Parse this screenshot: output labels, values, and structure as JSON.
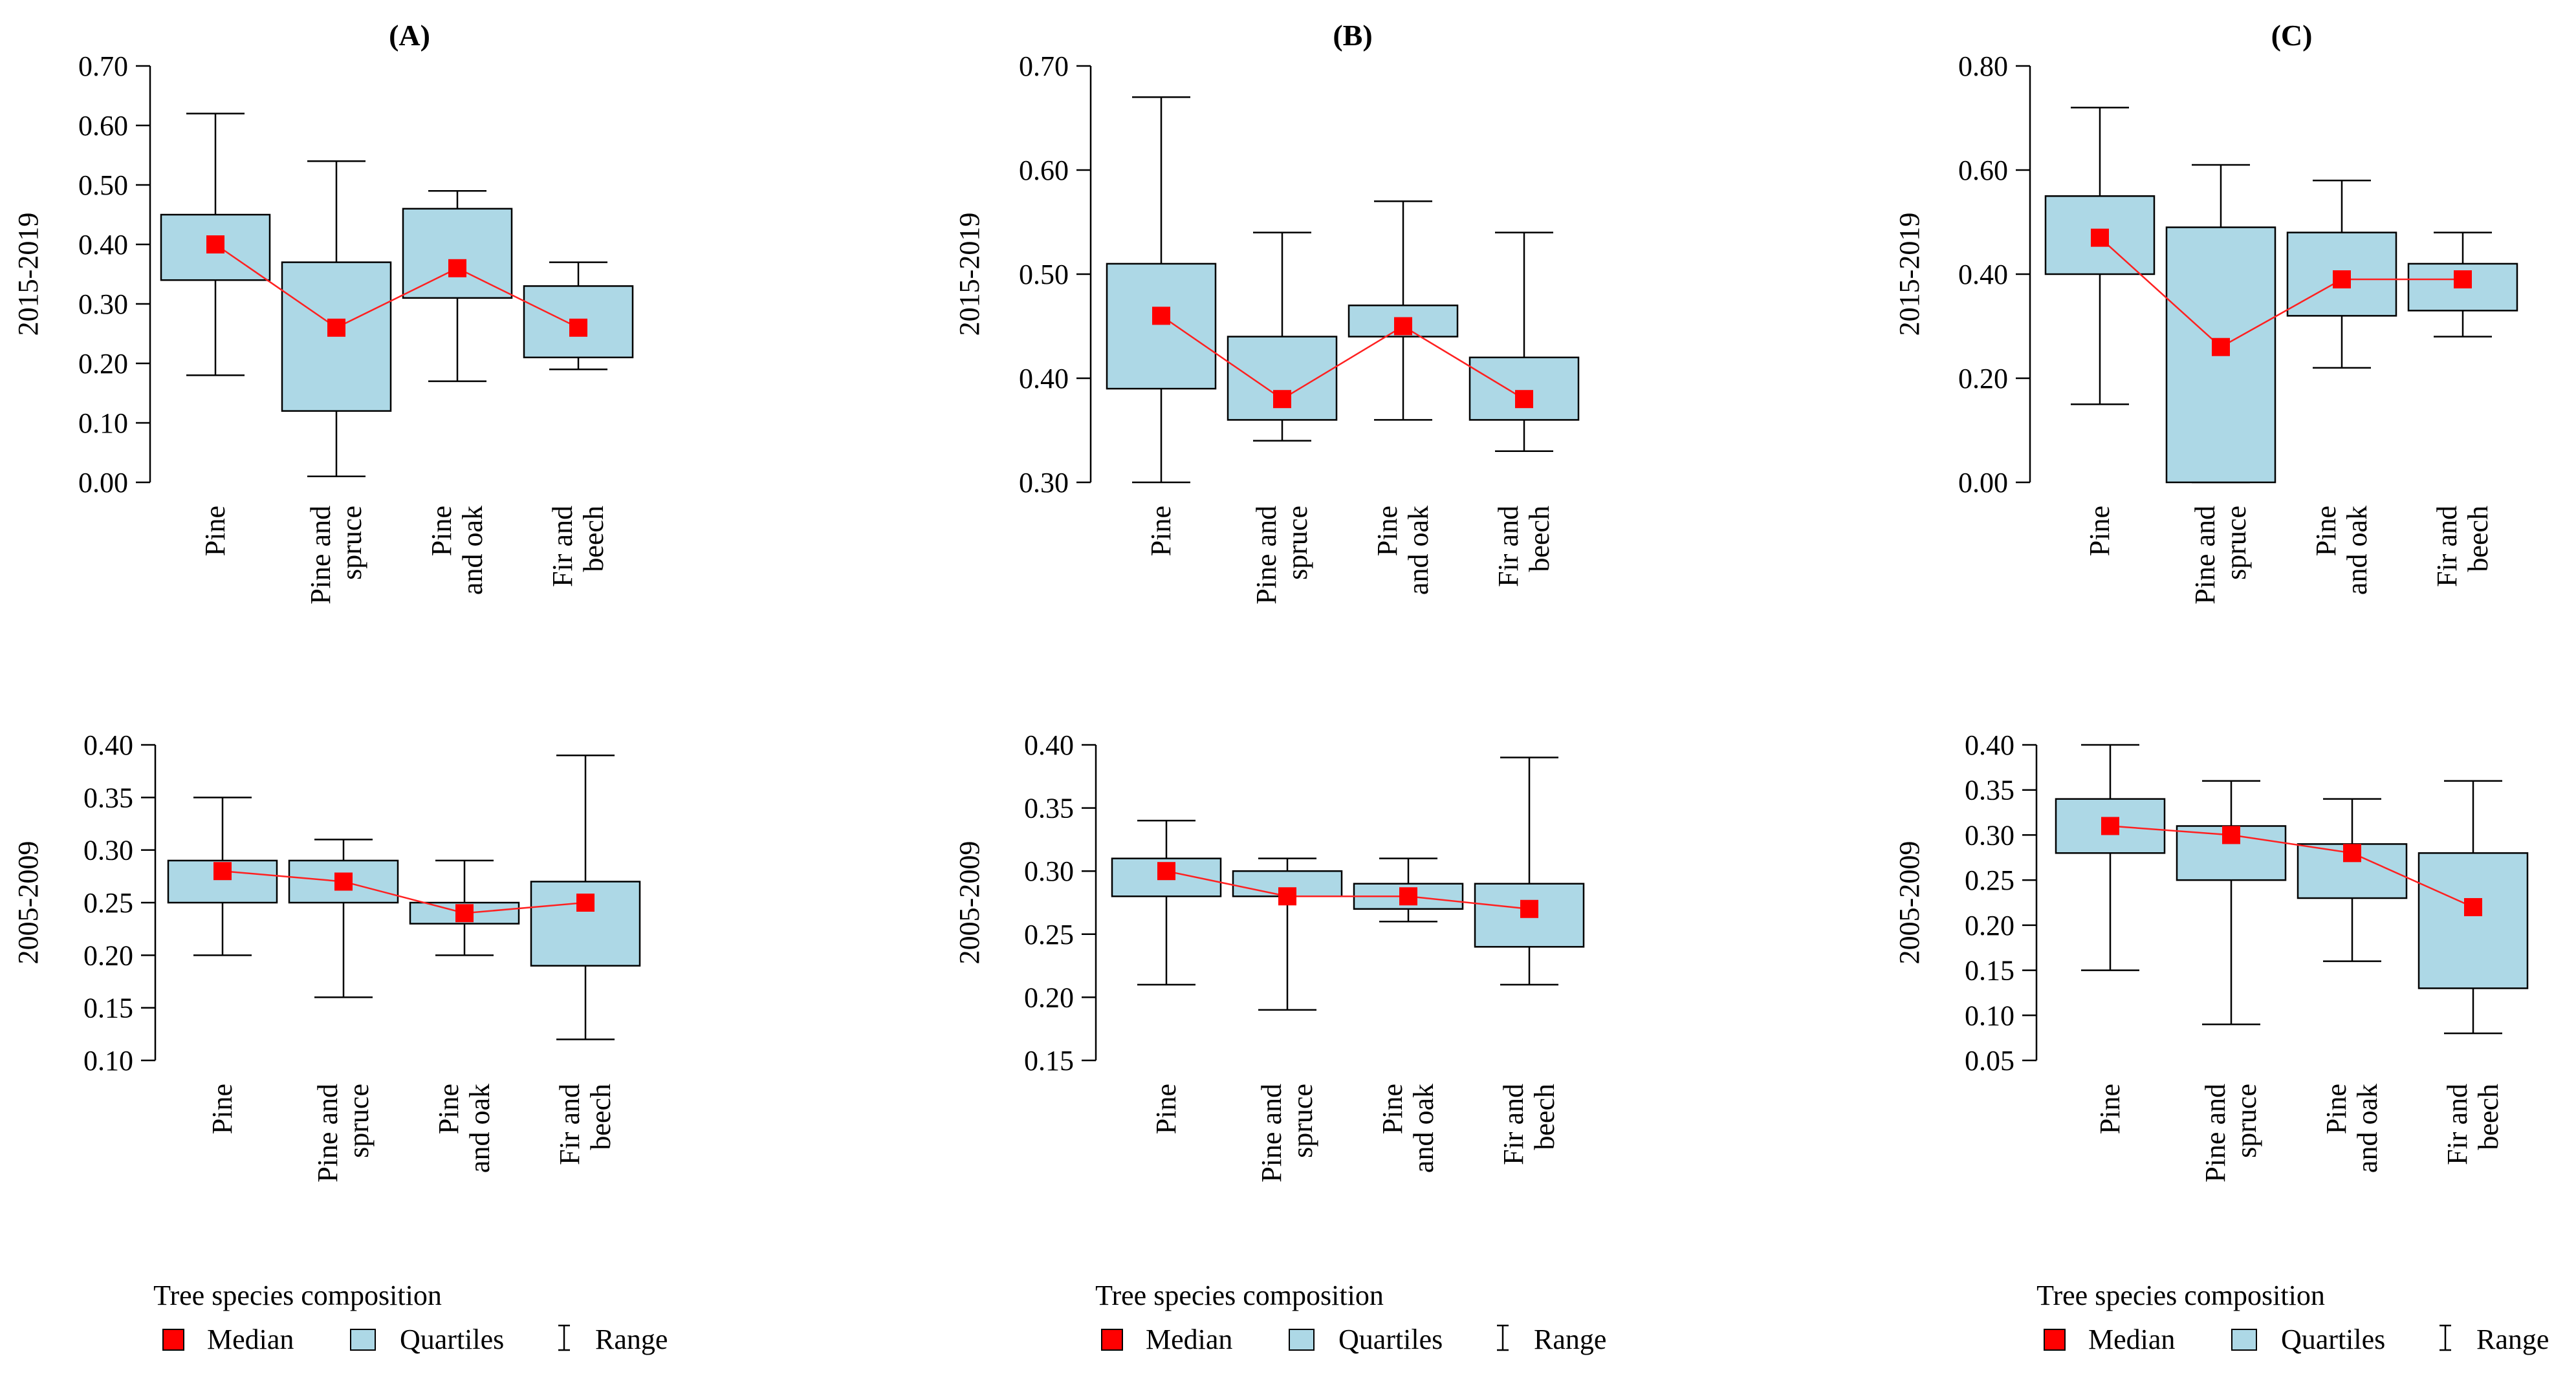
{
  "chart_data": [
    {
      "panel": "(A)",
      "row": "top",
      "type": "box",
      "ylabel": "2015-2019",
      "ylim": [
        0.0,
        0.7
      ],
      "yticks": [
        "0.00",
        "0.10",
        "0.20",
        "0.30",
        "0.40",
        "0.50",
        "0.60",
        "0.70"
      ],
      "categories": [
        "Pine",
        "Pine and spruce",
        "Pine and oak",
        "Fir and beech"
      ],
      "boxes": [
        {
          "min": 0.18,
          "q1": 0.34,
          "median": 0.4,
          "q3": 0.45,
          "max": 0.62
        },
        {
          "min": 0.01,
          "q1": 0.12,
          "median": 0.26,
          "q3": 0.37,
          "max": 0.54
        },
        {
          "min": 0.17,
          "q1": 0.31,
          "median": 0.36,
          "q3": 0.46,
          "max": 0.49
        },
        {
          "min": 0.19,
          "q1": 0.21,
          "median": 0.26,
          "q3": 0.33,
          "max": 0.37
        }
      ]
    },
    {
      "panel": "(B)",
      "row": "top",
      "type": "box",
      "ylabel": "2015-2019",
      "ylim": [
        0.3,
        0.7
      ],
      "yticks": [
        "0.30",
        "0.40",
        "0.50",
        "0.60",
        "0.70"
      ],
      "categories": [
        "Pine",
        "Pine and spruce",
        "Pine and oak",
        "Fir and beech"
      ],
      "boxes": [
        {
          "min": 0.3,
          "q1": 0.39,
          "median": 0.46,
          "q3": 0.51,
          "max": 0.67
        },
        {
          "min": 0.34,
          "q1": 0.36,
          "median": 0.38,
          "q3": 0.44,
          "max": 0.54
        },
        {
          "min": 0.36,
          "q1": 0.44,
          "median": 0.45,
          "q3": 0.47,
          "max": 0.57
        },
        {
          "min": 0.33,
          "q1": 0.36,
          "median": 0.38,
          "q3": 0.42,
          "max": 0.54
        }
      ]
    },
    {
      "panel": "(C)",
      "row": "top",
      "type": "box",
      "ylabel": "2015-2019",
      "ylim": [
        0.0,
        0.8
      ],
      "yticks": [
        "0.00",
        "0.20",
        "0.40",
        "0.60",
        "0.80"
      ],
      "categories": [
        "Pine",
        "Pine and spruce",
        "Pine and oak",
        "Fir and beech"
      ],
      "boxes": [
        {
          "min": 0.15,
          "q1": 0.4,
          "median": 0.47,
          "q3": 0.55,
          "max": 0.72
        },
        {
          "min": 0.0,
          "q1": 0.0,
          "median": 0.26,
          "q3": 0.49,
          "max": 0.61
        },
        {
          "min": 0.22,
          "q1": 0.32,
          "median": 0.39,
          "q3": 0.48,
          "max": 0.58
        },
        {
          "min": 0.28,
          "q1": 0.33,
          "median": 0.39,
          "q3": 0.42,
          "max": 0.48
        }
      ]
    },
    {
      "panel": "(A)",
      "row": "bottom",
      "type": "box",
      "ylabel": "2005-2009",
      "ylim": [
        0.1,
        0.4
      ],
      "yticks": [
        "0.10",
        "0.15",
        "0.20",
        "0.25",
        "0.30",
        "0.35",
        "0.40"
      ],
      "categories": [
        "Pine",
        "Pine and spruce",
        "Pine and oak",
        "Fir and beech"
      ],
      "boxes": [
        {
          "min": 0.2,
          "q1": 0.25,
          "median": 0.28,
          "q3": 0.29,
          "max": 0.35
        },
        {
          "min": 0.16,
          "q1": 0.25,
          "median": 0.27,
          "q3": 0.29,
          "max": 0.31
        },
        {
          "min": 0.2,
          "q1": 0.23,
          "median": 0.24,
          "q3": 0.25,
          "max": 0.29
        },
        {
          "min": 0.12,
          "q1": 0.19,
          "median": 0.25,
          "q3": 0.27,
          "max": 0.39
        }
      ]
    },
    {
      "panel": "(B)",
      "row": "bottom",
      "type": "box",
      "ylabel": "2005-2009",
      "ylim": [
        0.15,
        0.4
      ],
      "yticks": [
        "0.15",
        "0.20",
        "0.25",
        "0.30",
        "0.35",
        "0.40"
      ],
      "categories": [
        "Pine",
        "Pine and spruce",
        "Pine and oak",
        "Fir and beech"
      ],
      "boxes": [
        {
          "min": 0.21,
          "q1": 0.28,
          "median": 0.3,
          "q3": 0.31,
          "max": 0.34
        },
        {
          "min": 0.19,
          "q1": 0.28,
          "median": 0.28,
          "q3": 0.3,
          "max": 0.31
        },
        {
          "min": 0.26,
          "q1": 0.27,
          "median": 0.28,
          "q3": 0.29,
          "max": 0.31
        },
        {
          "min": 0.21,
          "q1": 0.24,
          "median": 0.27,
          "q3": 0.29,
          "max": 0.39
        }
      ]
    },
    {
      "panel": "(C)",
      "row": "bottom",
      "type": "box",
      "ylabel": "2005-2009",
      "ylim": [
        0.05,
        0.4
      ],
      "yticks": [
        "0.05",
        "0.10",
        "0.15",
        "0.20",
        "0.25",
        "0.30",
        "0.35",
        "0.40"
      ],
      "categories": [
        "Pine",
        "Pine and spruce",
        "Pine and oak",
        "Fir and beech"
      ],
      "boxes": [
        {
          "min": 0.15,
          "q1": 0.28,
          "median": 0.31,
          "q3": 0.34,
          "max": 0.4
        },
        {
          "min": 0.09,
          "q1": 0.25,
          "median": 0.3,
          "q3": 0.31,
          "max": 0.36
        },
        {
          "min": 0.16,
          "q1": 0.23,
          "median": 0.28,
          "q3": 0.29,
          "max": 0.34
        },
        {
          "min": 0.08,
          "q1": 0.13,
          "median": 0.22,
          "q3": 0.28,
          "max": 0.36
        }
      ]
    }
  ],
  "xlabel": "Tree species composition",
  "legend": {
    "median": "Median",
    "quartiles": "Quartiles",
    "range": "Range",
    "placement": "bottom"
  },
  "colors": {
    "median": "#ff0000",
    "box_fill": "#add8e6",
    "median_line": "#ff2020",
    "axis": "#000000"
  }
}
